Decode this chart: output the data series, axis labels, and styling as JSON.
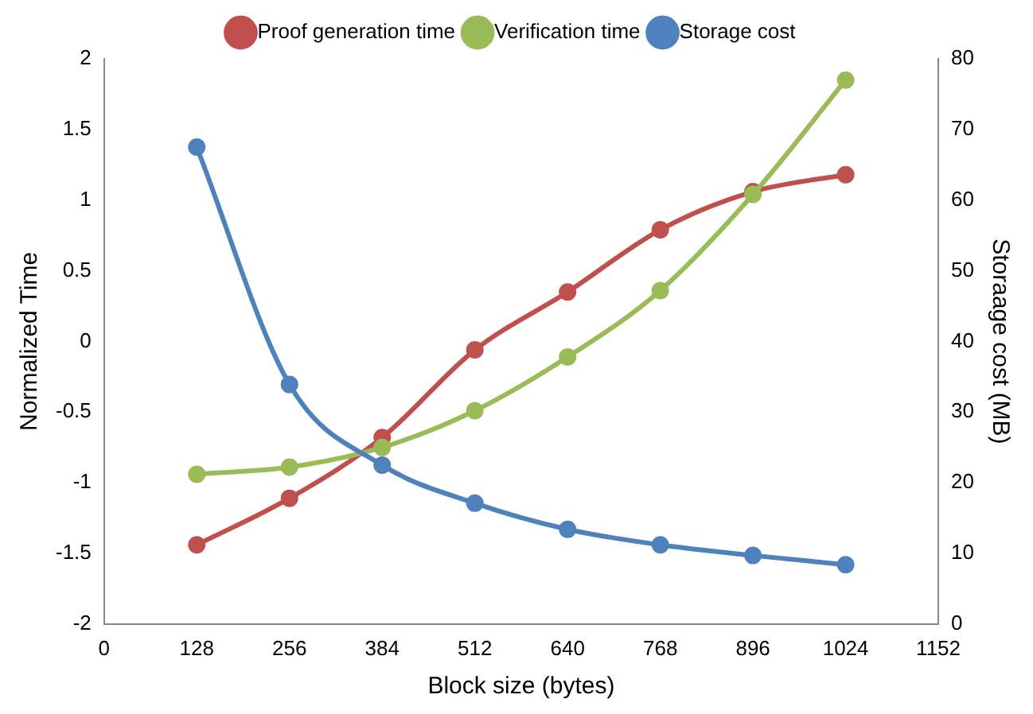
{
  "chart_data": {
    "type": "line",
    "xlabel": "Block size (bytes)",
    "ylabel": "Normalized Time",
    "y2label": "Storaage cost (MB)",
    "x": [
      128,
      256,
      384,
      512,
      640,
      768,
      896,
      1024
    ],
    "xlim": [
      0,
      1152
    ],
    "xticks": [
      0,
      128,
      256,
      384,
      512,
      640,
      768,
      896,
      1024,
      1152
    ],
    "ylim": [
      -2,
      2
    ],
    "yticks": [
      -2,
      -1.5,
      -1,
      -0.5,
      0,
      0.5,
      1,
      1.5,
      2
    ],
    "y2lim": [
      0,
      80
    ],
    "y2ticks": [
      0,
      10,
      20,
      30,
      40,
      50,
      60,
      70,
      80
    ],
    "series": [
      {
        "name": "Proof generation time",
        "color": "#c0504d",
        "values": [
          -1.44,
          -1.11,
          -0.68,
          -0.06,
          0.35,
          0.79,
          1.06,
          1.18
        ]
      },
      {
        "name": "Verification time",
        "color": "#9bbb59",
        "values": [
          -0.94,
          -0.89,
          -0.75,
          -0.49,
          -0.11,
          0.36,
          1.04,
          1.85
        ]
      },
      {
        "name": "Storage cost",
        "color": "#4f81bd",
        "axis": "y2",
        "values": [
          67.5,
          33.9,
          22.5,
          17.1,
          13.4,
          11.2,
          9.7,
          8.4
        ]
      }
    ],
    "grid": false,
    "legend": "top",
    "marker": "circle",
    "line_style": "solid"
  }
}
